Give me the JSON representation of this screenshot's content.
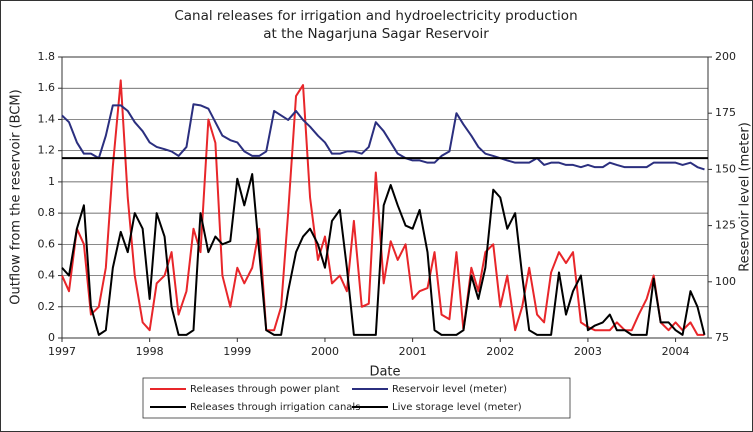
{
  "chart_data": {
    "type": "line",
    "title": "Canal releases for irrigation and hydroelectricity production",
    "subtitle": "at the Nagarjuna Sagar Reservoir",
    "x_label": "Date",
    "y_label": "Outflow from the reservoir (BCM)",
    "y2_label": "Reservoir level (meter)",
    "xlim": [
      1997,
      2004.37
    ],
    "xticks": [
      1997,
      1998,
      1999,
      2000,
      2001,
      2002,
      2003,
      2004
    ],
    "ylim": [
      0,
      1.8
    ],
    "yticks": [
      0,
      0.2,
      0.4,
      0.6,
      0.8,
      1,
      1.2,
      1.4,
      1.6,
      1.8
    ],
    "y2lim": [
      75,
      200
    ],
    "y2ticks": [
      75,
      100,
      125,
      150,
      175,
      200
    ],
    "grid": true,
    "legend": "bottom",
    "x": [
      1997,
      1997.08,
      1997.17,
      1997.25,
      1997.33,
      1997.42,
      1997.5,
      1997.58,
      1997.67,
      1997.75,
      1997.83,
      1997.92,
      1998,
      1998.08,
      1998.17,
      1998.25,
      1998.33,
      1998.42,
      1998.5,
      1998.58,
      1998.67,
      1998.75,
      1998.83,
      1998.92,
      1999,
      1999.08,
      1999.17,
      1999.25,
      1999.33,
      1999.42,
      1999.5,
      1999.58,
      1999.67,
      1999.75,
      1999.83,
      1999.92,
      2000,
      2000.08,
      2000.17,
      2000.25,
      2000.33,
      2000.42,
      2000.5,
      2000.58,
      2000.67,
      2000.75,
      2000.83,
      2000.92,
      2001,
      2001.08,
      2001.17,
      2001.25,
      2001.33,
      2001.42,
      2001.5,
      2001.58,
      2001.67,
      2001.75,
      2001.83,
      2001.92,
      2002,
      2002.08,
      2002.17,
      2002.25,
      2002.33,
      2002.42,
      2002.5,
      2002.58,
      2002.67,
      2002.75,
      2002.83,
      2002.92,
      2003,
      2003.08,
      2003.17,
      2003.25,
      2003.33,
      2003.42,
      2003.5,
      2003.58,
      2003.67,
      2003.75,
      2003.83,
      2003.92,
      2004,
      2004.08,
      2004.17,
      2004.25,
      2004.33
    ],
    "series": [
      {
        "name": "Releases through power plant",
        "color": "#e8262a",
        "values": [
          0.4,
          0.3,
          0.7,
          0.6,
          0.15,
          0.2,
          0.45,
          1.1,
          1.65,
          0.9,
          0.4,
          0.1,
          0.05,
          0.35,
          0.4,
          0.55,
          0.15,
          0.3,
          0.7,
          0.55,
          1.4,
          1.25,
          0.4,
          0.2,
          0.45,
          0.35,
          0.45,
          0.7,
          0.05,
          0.05,
          0.2,
          0.8,
          1.55,
          1.62,
          0.9,
          0.5,
          0.65,
          0.35,
          0.4,
          0.3,
          0.75,
          0.2,
          0.22,
          1.06,
          0.35,
          0.62,
          0.5,
          0.6,
          0.25,
          0.3,
          0.32,
          0.55,
          0.15,
          0.12,
          0.55,
          0.05,
          0.45,
          0.3,
          0.55,
          0.6,
          0.2,
          0.4,
          0.05,
          0.2,
          0.45,
          0.15,
          0.1,
          0.42,
          0.55,
          0.48,
          0.55,
          0.1,
          0.07,
          0.05,
          0.05,
          0.05,
          0.1,
          0.05,
          0.05,
          0.15,
          0.25,
          0.4,
          0.1,
          0.05,
          0.1,
          0.05,
          0.1,
          0.02,
          0.02
        ]
      },
      {
        "name": "Releases through irrigation canals",
        "color": "#000000",
        "values": [
          0.45,
          0.4,
          0.7,
          0.85,
          0.2,
          0.02,
          0.05,
          0.45,
          0.68,
          0.55,
          0.8,
          0.7,
          0.25,
          0.8,
          0.65,
          0.2,
          0.02,
          0.02,
          0.05,
          0.8,
          0.55,
          0.65,
          0.6,
          0.62,
          1.02,
          0.85,
          1.05,
          0.55,
          0.05,
          0.02,
          0.02,
          0.3,
          0.55,
          0.65,
          0.7,
          0.6,
          0.45,
          0.75,
          0.82,
          0.45,
          0.02,
          0.02,
          0.02,
          0.02,
          0.85,
          0.98,
          0.85,
          0.72,
          0.7,
          0.82,
          0.55,
          0.05,
          0.02,
          0.02,
          0.02,
          0.05,
          0.4,
          0.25,
          0.45,
          0.95,
          0.9,
          0.7,
          0.8,
          0.4,
          0.05,
          0.02,
          0.02,
          0.02,
          0.42,
          0.15,
          0.3,
          0.4,
          0.05,
          0.08,
          0.1,
          0.15,
          0.05,
          0.05,
          0.02,
          0.02,
          0.02,
          0.38,
          0.1,
          0.1,
          0.05,
          0.02,
          0.3,
          0.2,
          0.02
        ]
      },
      {
        "name": "Reservoir level (meter)",
        "color": "#2b2f7f",
        "axis": "y2",
        "values": [
          174,
          171,
          162,
          157,
          157,
          155,
          165,
          178.5,
          178.5,
          176,
          171,
          167,
          162,
          160,
          159,
          158,
          156,
          160,
          179,
          178.5,
          177,
          171,
          165,
          163,
          162,
          158,
          156,
          156,
          158,
          176,
          174,
          172,
          176,
          172,
          169,
          165,
          162,
          157,
          157,
          158,
          158,
          157,
          160,
          171,
          167,
          162,
          157,
          155,
          154,
          154,
          153,
          153,
          156,
          158,
          175,
          170,
          165,
          160,
          157,
          156,
          155,
          154,
          153,
          153,
          153,
          155,
          152,
          153,
          153,
          152,
          152,
          151,
          152,
          151,
          151,
          153,
          152,
          151,
          151,
          151,
          151,
          153,
          153,
          153,
          153,
          152,
          153,
          151,
          150
        ]
      },
      {
        "name": "Live storage level (meter)",
        "color": "#000000",
        "axis": "y2",
        "x": [
          1997,
          2004.37
        ],
        "values": [
          155,
          155
        ]
      }
    ]
  }
}
